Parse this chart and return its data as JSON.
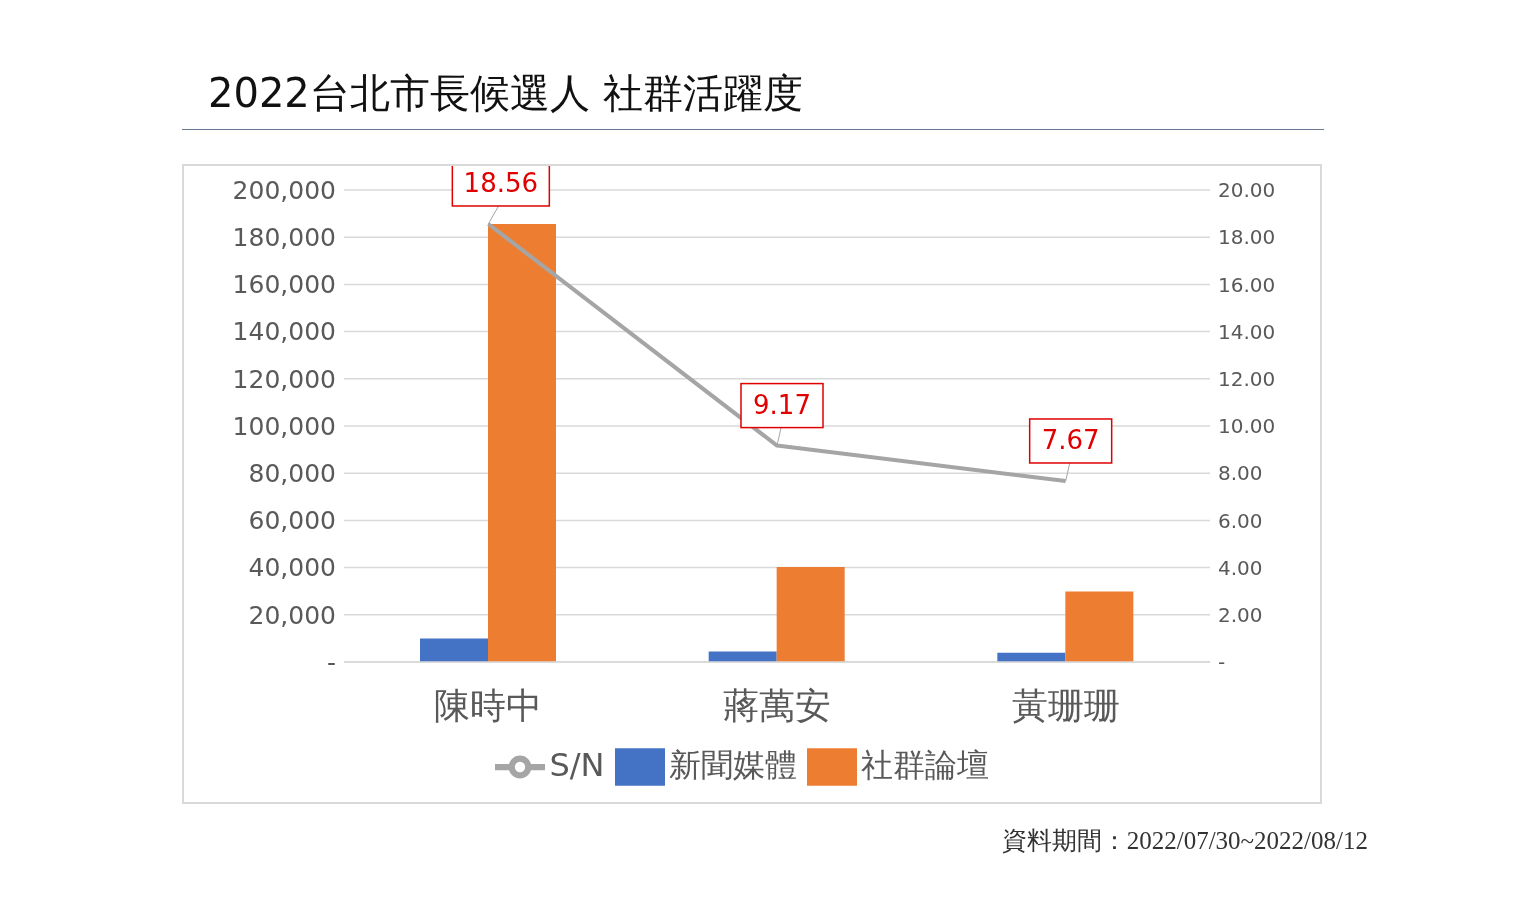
{
  "chart_data": {
    "type": "bar",
    "title": "2022台北市長候選人 社群活躍度",
    "categories": [
      "陳時中",
      "蔣萬安",
      "黃珊珊"
    ],
    "series": [
      {
        "name": "新聞媒體",
        "color": "#4472c4",
        "values": [
          10000,
          4400,
          3900
        ]
      },
      {
        "name": "社群論壇",
        "color": "#ed7d31",
        "values": [
          185600,
          40300,
          29900
        ]
      },
      {
        "name": "S/N",
        "type": "line",
        "axis": "y2",
        "color": "#a5a5a5",
        "values": [
          18.56,
          9.17,
          7.67
        ],
        "value_labels": [
          "18.56",
          "9.17",
          "7.67"
        ]
      }
    ],
    "ylim": [
      0,
      200000
    ],
    "yticks": [
      {
        "value": 0,
        "label": "-"
      },
      {
        "value": 20000,
        "label": "20,000"
      },
      {
        "value": 40000,
        "label": "40,000"
      },
      {
        "value": 60000,
        "label": "60,000"
      },
      {
        "value": 80000,
        "label": "80,000"
      },
      {
        "value": 100000,
        "label": "100,000"
      },
      {
        "value": 120000,
        "label": "120,000"
      },
      {
        "value": 140000,
        "label": "140,000"
      },
      {
        "value": 160000,
        "label": "160,000"
      },
      {
        "value": 180000,
        "label": "180,000"
      },
      {
        "value": 200000,
        "label": "200,000"
      }
    ],
    "y2lim": [
      0,
      20
    ],
    "y2ticks": [
      {
        "value": 0,
        "label": "-"
      },
      {
        "value": 2,
        "label": "2.00"
      },
      {
        "value": 4,
        "label": "4.00"
      },
      {
        "value": 6,
        "label": "6.00"
      },
      {
        "value": 8,
        "label": "8.00"
      },
      {
        "value": 10,
        "label": "10.00"
      },
      {
        "value": 12,
        "label": "12.00"
      },
      {
        "value": 14,
        "label": "14.00"
      },
      {
        "value": 16,
        "label": "16.00"
      },
      {
        "value": 18,
        "label": "18.00"
      },
      {
        "value": 20,
        "label": "20.00"
      }
    ],
    "grid": "y",
    "legend": "bottom",
    "marker": "none",
    "line_style": "solid",
    "annotations": [
      "資料期間：2022/07/30~2022/08/12"
    ]
  }
}
